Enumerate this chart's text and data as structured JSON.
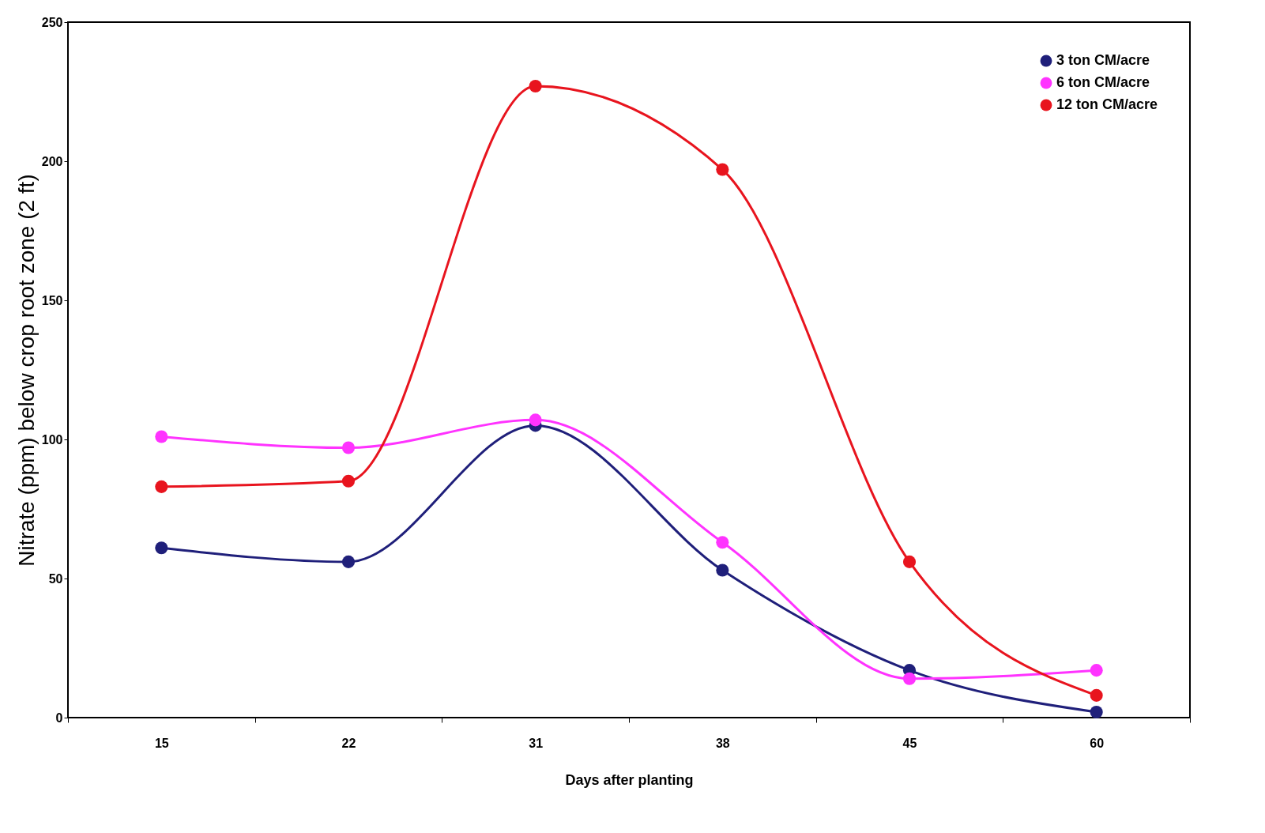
{
  "chart_data": {
    "type": "line",
    "xlabel": "Days after planting",
    "ylabel": "Nitrate (ppm) below crop root zone (2 ft)",
    "categories": [
      "15",
      "22",
      "31",
      "38",
      "45",
      "60"
    ],
    "series": [
      {
        "name": "3 ton CM/acre",
        "color": "#1f1f7a",
        "values": [
          61,
          56,
          105,
          53,
          17,
          2
        ]
      },
      {
        "name": "6 ton CM/acre",
        "color": "#ff33ff",
        "values": [
          101,
          97,
          107,
          63,
          14,
          17
        ]
      },
      {
        "name": "12 ton CM/acre",
        "color": "#e8141e",
        "values": [
          83,
          85,
          227,
          197,
          56,
          8
        ]
      }
    ],
    "ylim": [
      0,
      250
    ],
    "yticks": [
      0,
      50,
      100,
      150,
      200,
      250
    ],
    "legend": "top right",
    "marker": "circle"
  }
}
